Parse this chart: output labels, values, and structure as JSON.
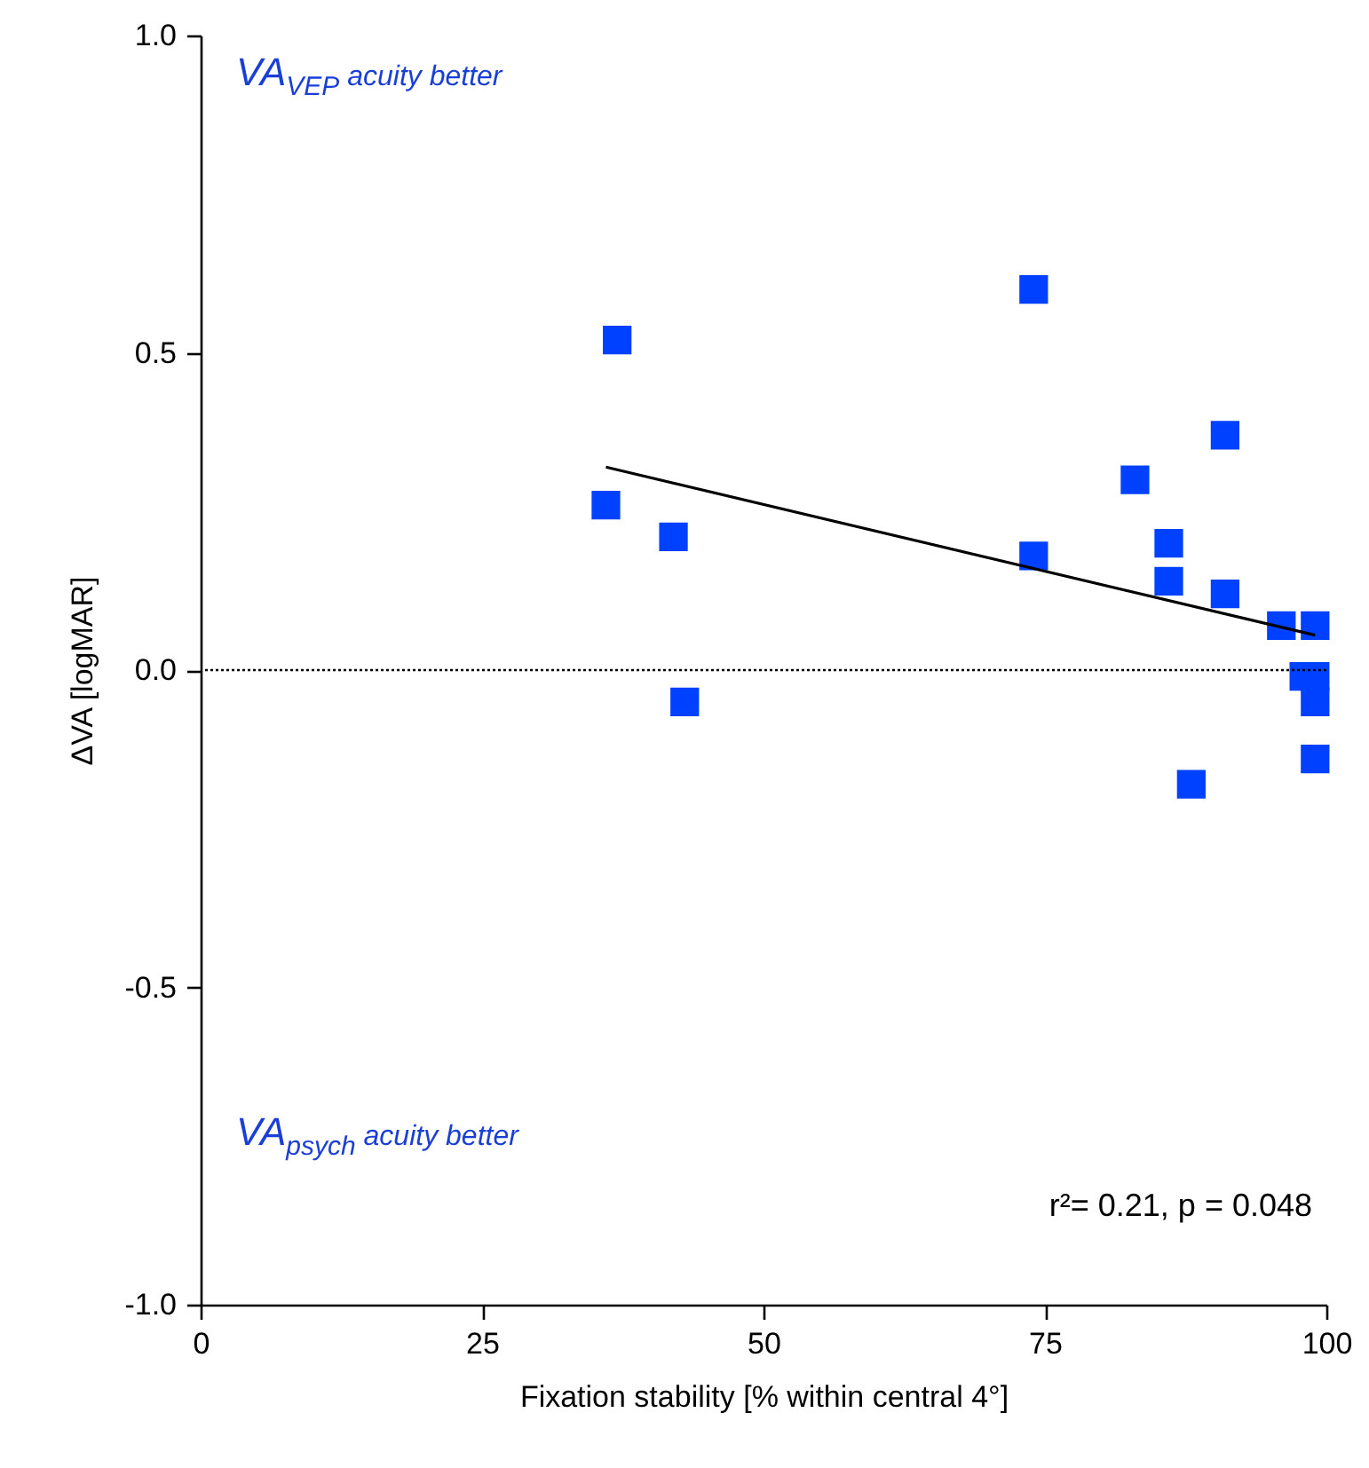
{
  "chart_data": {
    "type": "scatter",
    "xlabel": "Fixation stability [% within central 4°]",
    "ylabel": "ΔVA [logMAR]",
    "xlim": [
      0,
      100
    ],
    "xticks": [
      0,
      25,
      50,
      75,
      100
    ],
    "ylim": [
      -1.0,
      1.0
    ],
    "yticks": [
      {
        "value": -1,
        "label": "-1.0"
      },
      {
        "value": -0.5,
        "label": "-0.5"
      },
      {
        "value": 0,
        "label": "0.0"
      },
      {
        "value": 0.5,
        "label": "0.5"
      },
      {
        "value": 1,
        "label": "1.0"
      }
    ],
    "grid": false,
    "series": [
      {
        "marker": "square",
        "color": "#0040ff",
        "x": [
          36,
          37,
          42,
          43,
          74,
          74,
          83,
          86,
          86,
          88,
          91,
          91,
          96,
          98,
          99,
          99,
          99,
          99
        ],
        "values": [
          0.26,
          0.52,
          0.21,
          -0.05,
          0.6,
          0.18,
          0.3,
          0.2,
          0.14,
          -0.18,
          0.37,
          0.12,
          0.07,
          -0.01,
          0.07,
          -0.01,
          -0.05,
          -0.14
        ]
      },
      {
        "type": "line",
        "marker": "none",
        "color": "#000000",
        "line_style": "solid",
        "x": [
          36,
          99
        ],
        "values": [
          0.32,
          0.055
        ]
      }
    ],
    "ref_lines": [
      {
        "axis": "y",
        "value": 0,
        "line_style": "dotted",
        "color": "#000000"
      }
    ],
    "annotations": [
      "VA$_{VEP}$ acuity better",
      "VA$_{psych}$ acuity better",
      "r²= 0.21, p = 0.048"
    ]
  }
}
